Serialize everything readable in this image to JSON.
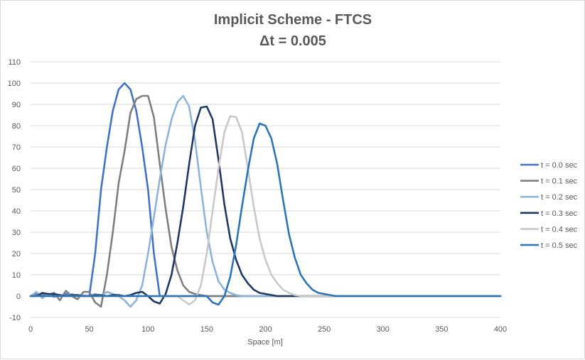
{
  "chart_data": {
    "type": "line",
    "title": "Implicit Scheme - FTCS",
    "subtitle": "Δt = 0.005",
    "xlabel": "Space [m]",
    "ylabel": "",
    "xlim": [
      0,
      400
    ],
    "ylim": [
      -10,
      110
    ],
    "xticks": [
      0,
      50,
      100,
      150,
      200,
      250,
      300,
      350,
      400
    ],
    "yticks": [
      -10,
      0,
      10,
      20,
      30,
      40,
      50,
      60,
      70,
      80,
      90,
      100,
      110
    ],
    "grid": true,
    "legend_position": "right",
    "series": [
      {
        "name": "t = 0.0 sec",
        "color": "#4472c4",
        "x": [
          0,
          5,
          10,
          15,
          20,
          25,
          30,
          35,
          40,
          45,
          50,
          55,
          60,
          65,
          70,
          75,
          80,
          85,
          90,
          95,
          100,
          105,
          110,
          115,
          120,
          125,
          130,
          135,
          140,
          145,
          150,
          155,
          160,
          165,
          170,
          175,
          180,
          185,
          190,
          195,
          200,
          205,
          210,
          215,
          220,
          225,
          230,
          235,
          240,
          245,
          250,
          255,
          260,
          265,
          270,
          275,
          280,
          285,
          290,
          295,
          300,
          305,
          310,
          315,
          320,
          325,
          330,
          335,
          340,
          345,
          350,
          355,
          360,
          365,
          370,
          375,
          380,
          385,
          390,
          395,
          400
        ],
        "y": [
          0,
          1,
          0.5,
          1,
          0.5,
          0,
          1,
          0,
          0.5,
          0,
          0,
          20,
          50,
          70,
          87,
          97,
          100,
          97,
          87,
          70,
          50,
          20,
          0,
          0,
          0,
          0,
          0,
          0,
          0,
          0,
          0,
          0,
          0,
          0,
          0,
          0,
          0,
          0,
          0,
          0,
          0,
          0,
          0,
          0,
          0,
          0,
          0,
          0,
          0,
          0,
          0,
          0,
          0,
          0,
          0,
          0,
          0,
          0,
          0,
          0,
          0,
          0,
          0,
          0,
          0,
          0,
          0,
          0,
          0,
          0,
          0,
          0,
          0,
          0,
          0,
          0,
          0,
          0,
          0,
          0,
          0
        ]
      },
      {
        "name": "t = 0.1 sec",
        "color": "#7f7f7f",
        "x": [
          0,
          5,
          10,
          15,
          20,
          25,
          30,
          35,
          40,
          45,
          50,
          55,
          60,
          65,
          70,
          75,
          80,
          85,
          90,
          95,
          100,
          105,
          110,
          115,
          120,
          125,
          130,
          135,
          140,
          145,
          150,
          155,
          160,
          165,
          170,
          175,
          180,
          185,
          190,
          195,
          200,
          205,
          210,
          215,
          220,
          225,
          230,
          235,
          240,
          245,
          250,
          255,
          260,
          265,
          270,
          275,
          280,
          285,
          290,
          295,
          300,
          305,
          310,
          315,
          320,
          325,
          330,
          335,
          340,
          345,
          350,
          355,
          360,
          365,
          370,
          375,
          380,
          385,
          390,
          395,
          400
        ],
        "y": [
          0,
          0.5,
          1,
          0.5,
          1.5,
          -2,
          2.5,
          0,
          -1.5,
          2,
          2,
          -3,
          -5,
          10,
          30,
          53,
          68,
          86,
          92.5,
          94,
          94,
          84,
          62,
          41,
          23,
          12,
          5,
          2,
          1,
          0.5,
          0,
          0,
          0,
          0,
          0,
          0,
          0,
          0,
          0,
          0,
          0,
          0,
          0,
          0,
          0,
          0,
          0,
          0,
          0,
          0,
          0,
          0,
          0,
          0,
          0,
          0,
          0,
          0,
          0,
          0,
          0,
          0,
          0,
          0,
          0,
          0,
          0,
          0,
          0,
          0,
          0,
          0,
          0,
          0,
          0,
          0,
          0,
          0,
          0,
          0,
          0
        ]
      },
      {
        "name": "t = 0.2 sec",
        "color": "#8fb4dc",
        "x": [
          0,
          5,
          10,
          15,
          20,
          25,
          30,
          35,
          40,
          45,
          50,
          55,
          60,
          65,
          70,
          75,
          80,
          85,
          90,
          95,
          100,
          105,
          110,
          115,
          120,
          125,
          130,
          135,
          140,
          145,
          150,
          155,
          160,
          165,
          170,
          175,
          180,
          185,
          190,
          195,
          200,
          205,
          210,
          215,
          220,
          225,
          230,
          235,
          240,
          245,
          250,
          255,
          260,
          265,
          270,
          275,
          280,
          285,
          290,
          295,
          300,
          305,
          310,
          315,
          320,
          325,
          330,
          335,
          340,
          345,
          350,
          355,
          360,
          365,
          370,
          375,
          380,
          385,
          390,
          395,
          400
        ],
        "y": [
          0,
          2,
          -1,
          1,
          -0.5,
          0.5,
          0,
          1,
          0,
          0.5,
          0,
          1,
          0,
          2,
          1,
          0,
          -2,
          -5,
          -2,
          5,
          20,
          37,
          55,
          71,
          83,
          91,
          94,
          89,
          73,
          51,
          30,
          16,
          7,
          3,
          1.5,
          0.5,
          0,
          0,
          0,
          0,
          0,
          0,
          0,
          0,
          0,
          0,
          0,
          0,
          0,
          0,
          0,
          0,
          0,
          0,
          0,
          0,
          0,
          0,
          0,
          0,
          0,
          0,
          0,
          0,
          0,
          0,
          0,
          0,
          0,
          0,
          0,
          0,
          0,
          0,
          0,
          0,
          0,
          0,
          0,
          0,
          0
        ]
      },
      {
        "name": "t = 0.3 sec",
        "color": "#1f3864",
        "x": [
          0,
          5,
          10,
          15,
          20,
          25,
          30,
          35,
          40,
          45,
          50,
          55,
          60,
          65,
          70,
          75,
          80,
          85,
          90,
          95,
          100,
          105,
          110,
          115,
          120,
          125,
          130,
          135,
          140,
          145,
          150,
          155,
          160,
          165,
          170,
          175,
          180,
          185,
          190,
          195,
          200,
          205,
          210,
          215,
          220,
          225,
          230,
          235,
          240,
          245,
          250,
          255,
          260,
          265,
          270,
          275,
          280,
          285,
          290,
          295,
          300,
          305,
          310,
          315,
          320,
          325,
          330,
          335,
          340,
          345,
          350,
          355,
          360,
          365,
          370,
          375,
          380,
          385,
          390,
          395,
          400
        ],
        "y": [
          0,
          0,
          1.5,
          1,
          1,
          0.5,
          0,
          0.5,
          0.5,
          0,
          0,
          0.5,
          0.5,
          0,
          0.5,
          0.5,
          0,
          0.5,
          1.5,
          2,
          0,
          -2.5,
          -3.5,
          1,
          10,
          25,
          42,
          62,
          80,
          88.5,
          89,
          83,
          64,
          43,
          27,
          17,
          10,
          6,
          3,
          1.5,
          1,
          0.5,
          0,
          0,
          0,
          0,
          0,
          0,
          0,
          0,
          0,
          0,
          0,
          0,
          0,
          0,
          0,
          0,
          0,
          0,
          0,
          0,
          0,
          0,
          0,
          0,
          0,
          0,
          0,
          0,
          0,
          0,
          0,
          0,
          0,
          0,
          0,
          0,
          0,
          0,
          0
        ]
      },
      {
        "name": "t = 0.4 sec",
        "color": "#c9c9c9",
        "x": [
          0,
          5,
          10,
          15,
          20,
          25,
          30,
          35,
          40,
          45,
          50,
          55,
          60,
          65,
          70,
          75,
          80,
          85,
          90,
          95,
          100,
          105,
          110,
          115,
          120,
          125,
          130,
          135,
          140,
          145,
          150,
          155,
          160,
          165,
          170,
          175,
          180,
          185,
          190,
          195,
          200,
          205,
          210,
          215,
          220,
          225,
          230,
          235,
          240,
          245,
          250,
          255,
          260,
          265,
          270,
          275,
          280,
          285,
          290,
          295,
          300,
          305,
          310,
          315,
          320,
          325,
          330,
          335,
          340,
          345,
          350,
          355,
          360,
          365,
          370,
          375,
          380,
          385,
          390,
          395,
          400
        ],
        "y": [
          0,
          0,
          0,
          0,
          0,
          0,
          0,
          0,
          0,
          0,
          0,
          0,
          0,
          0,
          0,
          0,
          0,
          0,
          0,
          0,
          0,
          0,
          0,
          0,
          0,
          0,
          -2,
          -4,
          -2,
          5,
          20,
          40,
          60,
          77,
          84.5,
          84,
          77,
          60,
          42,
          27,
          17,
          10,
          6,
          3,
          1.5,
          0.5,
          0,
          0,
          0,
          0,
          0,
          0,
          0,
          0,
          0,
          0,
          0,
          0,
          0,
          0,
          0,
          0,
          0,
          0,
          0,
          0,
          0,
          0,
          0,
          0,
          0,
          0,
          0,
          0,
          0,
          0,
          0,
          0,
          0,
          0,
          0
        ]
      },
      {
        "name": "t = 0.5 sec",
        "color": "#2e75b6",
        "x": [
          0,
          5,
          10,
          15,
          20,
          25,
          30,
          35,
          40,
          45,
          50,
          55,
          60,
          65,
          70,
          75,
          80,
          85,
          90,
          95,
          100,
          105,
          110,
          115,
          120,
          125,
          130,
          135,
          140,
          145,
          150,
          155,
          160,
          165,
          170,
          175,
          180,
          185,
          190,
          195,
          200,
          205,
          210,
          215,
          220,
          225,
          230,
          235,
          240,
          245,
          250,
          255,
          260,
          265,
          270,
          275,
          280,
          285,
          290,
          295,
          300,
          305,
          310,
          315,
          320,
          325,
          330,
          335,
          340,
          345,
          350,
          355,
          360,
          365,
          370,
          375,
          380,
          385,
          390,
          395,
          400
        ],
        "y": [
          0,
          0,
          0,
          0,
          0,
          0,
          0,
          0,
          0,
          0,
          0,
          0,
          0,
          0,
          0,
          0,
          0,
          0,
          0,
          0,
          0,
          0,
          0,
          0,
          0,
          0,
          0,
          0,
          0,
          0,
          0,
          -3,
          -4,
          0,
          9,
          24,
          42,
          59,
          74,
          81,
          80,
          74,
          62,
          45,
          29,
          18,
          10,
          6,
          3,
          1.5,
          1,
          0.5,
          0,
          0,
          0,
          0,
          0,
          0,
          0,
          0,
          0,
          0,
          0,
          0,
          0,
          0,
          0,
          0,
          0,
          0,
          0,
          0,
          0,
          0,
          0,
          0,
          0,
          0,
          0,
          0,
          0
        ]
      }
    ]
  }
}
